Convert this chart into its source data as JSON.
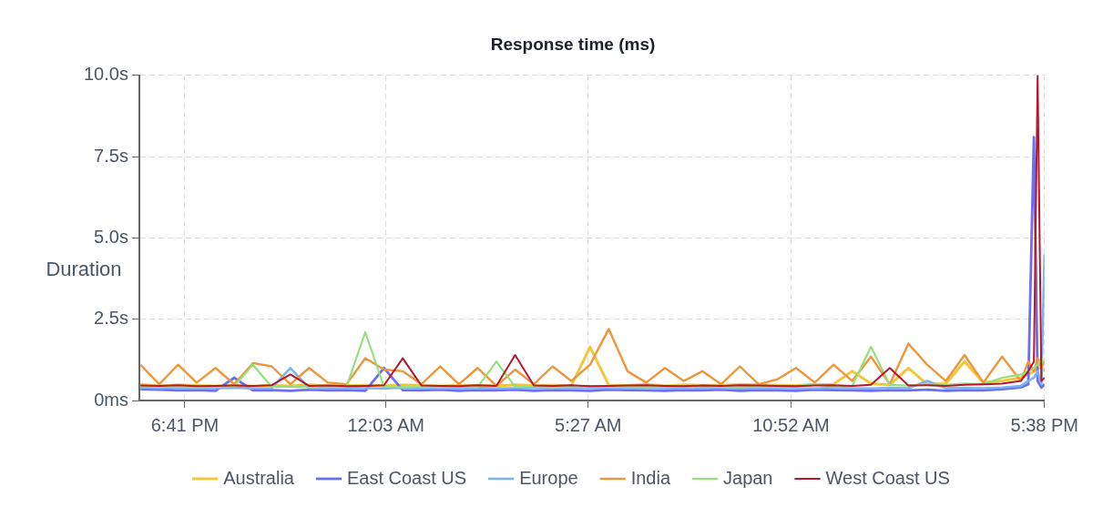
{
  "chart_data": {
    "type": "line",
    "title": "Response time (ms)",
    "ylabel": "Duration",
    "x": [
      "--01-01T17:30",
      "--01-01T18:00",
      "--01-01T18:30",
      "--01-01T19:00",
      "--01-01T19:30",
      "--01-01T20:00",
      "--01-01T20:30",
      "--01-01T21:00",
      "--01-01T21:30",
      "--01-01T22:00",
      "--01-01T22:30",
      "--01-01T23:00",
      "--01-01T23:30",
      "--01-02T00:00",
      "--01-02T00:30",
      "--01-02T01:00",
      "--01-02T01:30",
      "--01-02T02:00",
      "--01-02T02:30",
      "--01-02T03:00",
      "--01-02T03:30",
      "--01-02T04:00",
      "--01-02T04:30",
      "--01-02T05:00",
      "--01-02T05:30",
      "--01-02T06:00",
      "--01-02T06:30",
      "--01-02T07:00",
      "--01-02T07:30",
      "--01-02T08:00",
      "--01-02T08:30",
      "--01-02T09:00",
      "--01-02T09:30",
      "--01-02T10:00",
      "--01-02T10:30",
      "--01-02T11:00",
      "--01-02T11:30",
      "--01-02T12:00",
      "--01-02T12:30",
      "--01-02T13:00",
      "--01-02T13:30",
      "--01-02T14:00",
      "--01-02T14:30",
      "--01-02T15:00",
      "--01-02T15:30",
      "--01-02T16:00",
      "--01-02T16:30",
      "--01-02T17:00",
      "--01-02T17:12",
      "--01-02T17:21",
      "--01-02T17:27",
      "--01-02T17:33",
      "--01-02T17:38"
    ],
    "xlim": [
      "--01-01T17:28",
      "--01-02T17:38"
    ],
    "xticks": [
      {
        "value": "--01-01T18:41",
        "label": "6:41 PM"
      },
      {
        "value": "--01-02T00:03",
        "label": "12:03 AM"
      },
      {
        "value": "--01-02T05:27",
        "label": "5:27 AM"
      },
      {
        "value": "--01-02T10:52",
        "label": "10:52 AM"
      },
      {
        "value": "--01-02T17:38",
        "label": "5:38 PM"
      }
    ],
    "ylim": [
      0,
      10
    ],
    "yticks": [
      {
        "value": 0,
        "label": "0ms"
      },
      {
        "value": 2.5,
        "label": "2.5s"
      },
      {
        "value": 5,
        "label": "5.0s"
      },
      {
        "value": 7.5,
        "label": "7.5s"
      },
      {
        "value": 10,
        "label": "10.0s"
      }
    ],
    "grid": true,
    "legend": "bottom",
    "marker": "none",
    "line_style": "solid",
    "series": [
      {
        "name": "Australia",
        "color": "#f2c73a",
        "values": [
          0.5,
          0.45,
          0.48,
          0.46,
          0.45,
          0.47,
          0.44,
          0.46,
          0.45,
          0.48,
          0.45,
          0.46,
          0.47,
          0.45,
          0.48,
          0.46,
          0.45,
          0.47,
          0.46,
          0.45,
          0.48,
          0.46,
          0.47,
          0.45,
          1.65,
          0.47,
          0.46,
          0.5,
          0.45,
          0.48,
          0.47,
          0.46,
          0.5,
          0.48,
          0.47,
          0.46,
          0.49,
          0.5,
          0.9,
          0.52,
          0.48,
          1.0,
          0.5,
          0.52,
          1.2,
          0.55,
          0.6,
          0.7,
          0.8,
          0.9,
          1.0,
          1.0,
          0.9
        ]
      },
      {
        "name": "East Coast US",
        "color": "#6b6ef0",
        "values": [
          0.35,
          0.33,
          0.31,
          0.32,
          0.3,
          0.7,
          0.31,
          0.32,
          0.3,
          0.33,
          0.31,
          0.32,
          0.3,
          1.0,
          0.32,
          0.31,
          0.33,
          0.3,
          0.32,
          0.31,
          0.33,
          0.3,
          0.32,
          0.31,
          0.3,
          0.33,
          0.32,
          0.31,
          0.3,
          0.32,
          0.31,
          0.33,
          0.3,
          0.32,
          0.31,
          0.3,
          0.33,
          0.32,
          0.31,
          0.3,
          0.32,
          0.31,
          0.33,
          0.3,
          0.32,
          0.31,
          0.35,
          0.4,
          0.5,
          8.1,
          0.6,
          0.4,
          0.5
        ]
      },
      {
        "name": "Europe",
        "color": "#7ab3ef",
        "values": [
          0.4,
          0.38,
          0.39,
          0.37,
          0.38,
          0.39,
          0.37,
          0.38,
          1.0,
          0.38,
          0.37,
          0.39,
          0.38,
          0.37,
          0.39,
          0.38,
          0.37,
          0.38,
          0.39,
          0.37,
          0.38,
          0.39,
          0.37,
          0.38,
          0.39,
          0.38,
          0.37,
          0.39,
          0.38,
          0.37,
          0.39,
          0.38,
          0.37,
          0.38,
          0.39,
          0.38,
          0.37,
          0.39,
          0.38,
          0.37,
          0.39,
          0.38,
          0.6,
          0.38,
          0.39,
          0.38,
          0.4,
          0.45,
          0.6,
          0.7,
          0.9,
          0.5,
          4.5
        ]
      },
      {
        "name": "India",
        "color": "#f0953a",
        "values": [
          1.1,
          0.5,
          1.1,
          0.55,
          1.0,
          0.5,
          1.15,
          1.05,
          0.5,
          1.0,
          0.55,
          0.5,
          1.3,
          0.95,
          0.9,
          0.5,
          1.05,
          0.5,
          1.0,
          0.45,
          0.95,
          0.5,
          1.05,
          0.6,
          1.1,
          2.2,
          0.9,
          0.55,
          1.0,
          0.6,
          0.9,
          0.5,
          1.05,
          0.5,
          0.65,
          1.0,
          0.55,
          1.1,
          0.6,
          1.35,
          0.5,
          1.75,
          1.1,
          0.6,
          1.4,
          0.55,
          1.35,
          0.6,
          1.2,
          0.9,
          1.3,
          1.0,
          1.2
        ]
      },
      {
        "name": "Japan",
        "color": "#96e07c",
        "values": [
          0.45,
          0.42,
          0.43,
          0.41,
          0.42,
          0.44,
          1.1,
          0.42,
          0.43,
          0.41,
          0.42,
          0.43,
          2.1,
          0.42,
          0.41,
          0.43,
          0.42,
          0.44,
          0.41,
          1.2,
          0.42,
          0.43,
          0.41,
          0.42,
          0.44,
          0.43,
          0.42,
          0.41,
          0.43,
          0.42,
          0.44,
          0.42,
          0.41,
          0.43,
          0.42,
          0.44,
          0.5,
          0.42,
          0.45,
          1.65,
          0.48,
          0.46,
          0.5,
          0.48,
          0.52,
          0.5,
          0.7,
          0.8,
          0.9,
          1.0,
          1.1,
          1.3,
          1.1
        ]
      },
      {
        "name": "West Coast US",
        "color": "#b5172c",
        "values": [
          0.46,
          0.45,
          0.47,
          0.44,
          0.45,
          0.46,
          0.45,
          0.47,
          0.8,
          0.45,
          0.46,
          0.44,
          0.45,
          0.47,
          1.3,
          0.46,
          0.45,
          0.44,
          0.47,
          0.45,
          1.4,
          0.46,
          0.45,
          0.47,
          0.44,
          0.45,
          0.46,
          0.47,
          0.45,
          0.44,
          0.46,
          0.45,
          0.47,
          0.46,
          0.45,
          0.44,
          0.46,
          0.47,
          0.45,
          0.48,
          1.0,
          0.46,
          0.47,
          0.45,
          0.48,
          0.5,
          0.52,
          0.6,
          0.9,
          1.2,
          10.0,
          0.6,
          0.7
        ]
      }
    ]
  }
}
